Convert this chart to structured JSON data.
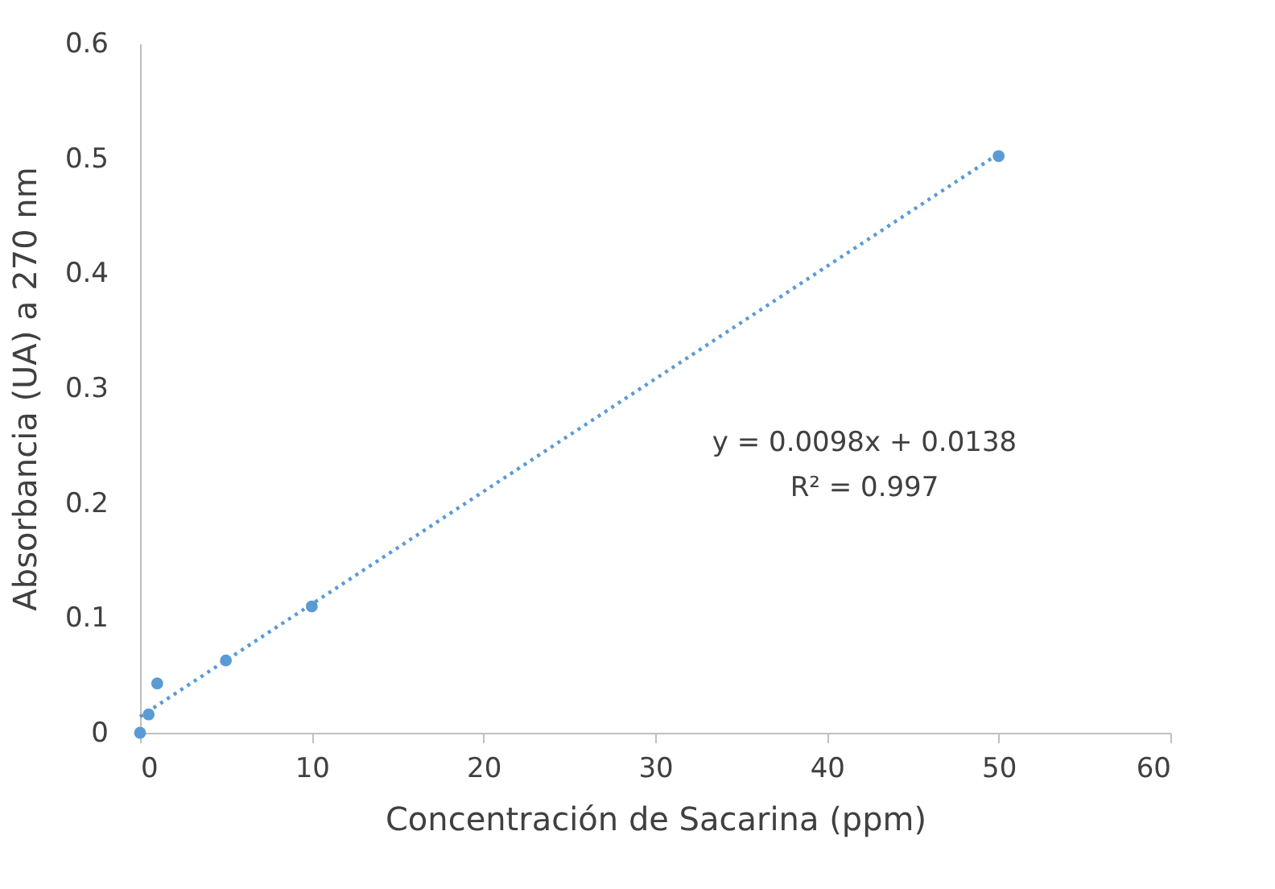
{
  "chart_data": {
    "type": "scatter",
    "xlabel": "Concentración de Sacarina (ppm)",
    "ylabel": "Absorbancia (UA) a 270 nm",
    "xlim": [
      0,
      60
    ],
    "xticks": [
      0,
      10,
      20,
      30,
      40,
      50,
      60
    ],
    "ylim": [
      0,
      0.6
    ],
    "yticks": [
      0,
      0.1,
      0.2,
      0.3,
      0.4,
      0.5,
      0.6
    ],
    "grid": false,
    "series": [
      {
        "marker": "circle",
        "color": "#5b9bd5",
        "x": [
          0,
          0.5,
          1,
          5,
          10,
          50
        ],
        "values": [
          0,
          0.016,
          0.043,
          0.063,
          0.11,
          0.502
        ]
      },
      {
        "type": "line",
        "color": "#5b9bd5",
        "line_style": "dotted",
        "marker": "none",
        "x": [
          0,
          50
        ],
        "values": [
          0.014,
          0.504
        ]
      }
    ],
    "annotations": [
      "y = 0.0098x + 0.0138",
      "R² = 0.997"
    ]
  }
}
